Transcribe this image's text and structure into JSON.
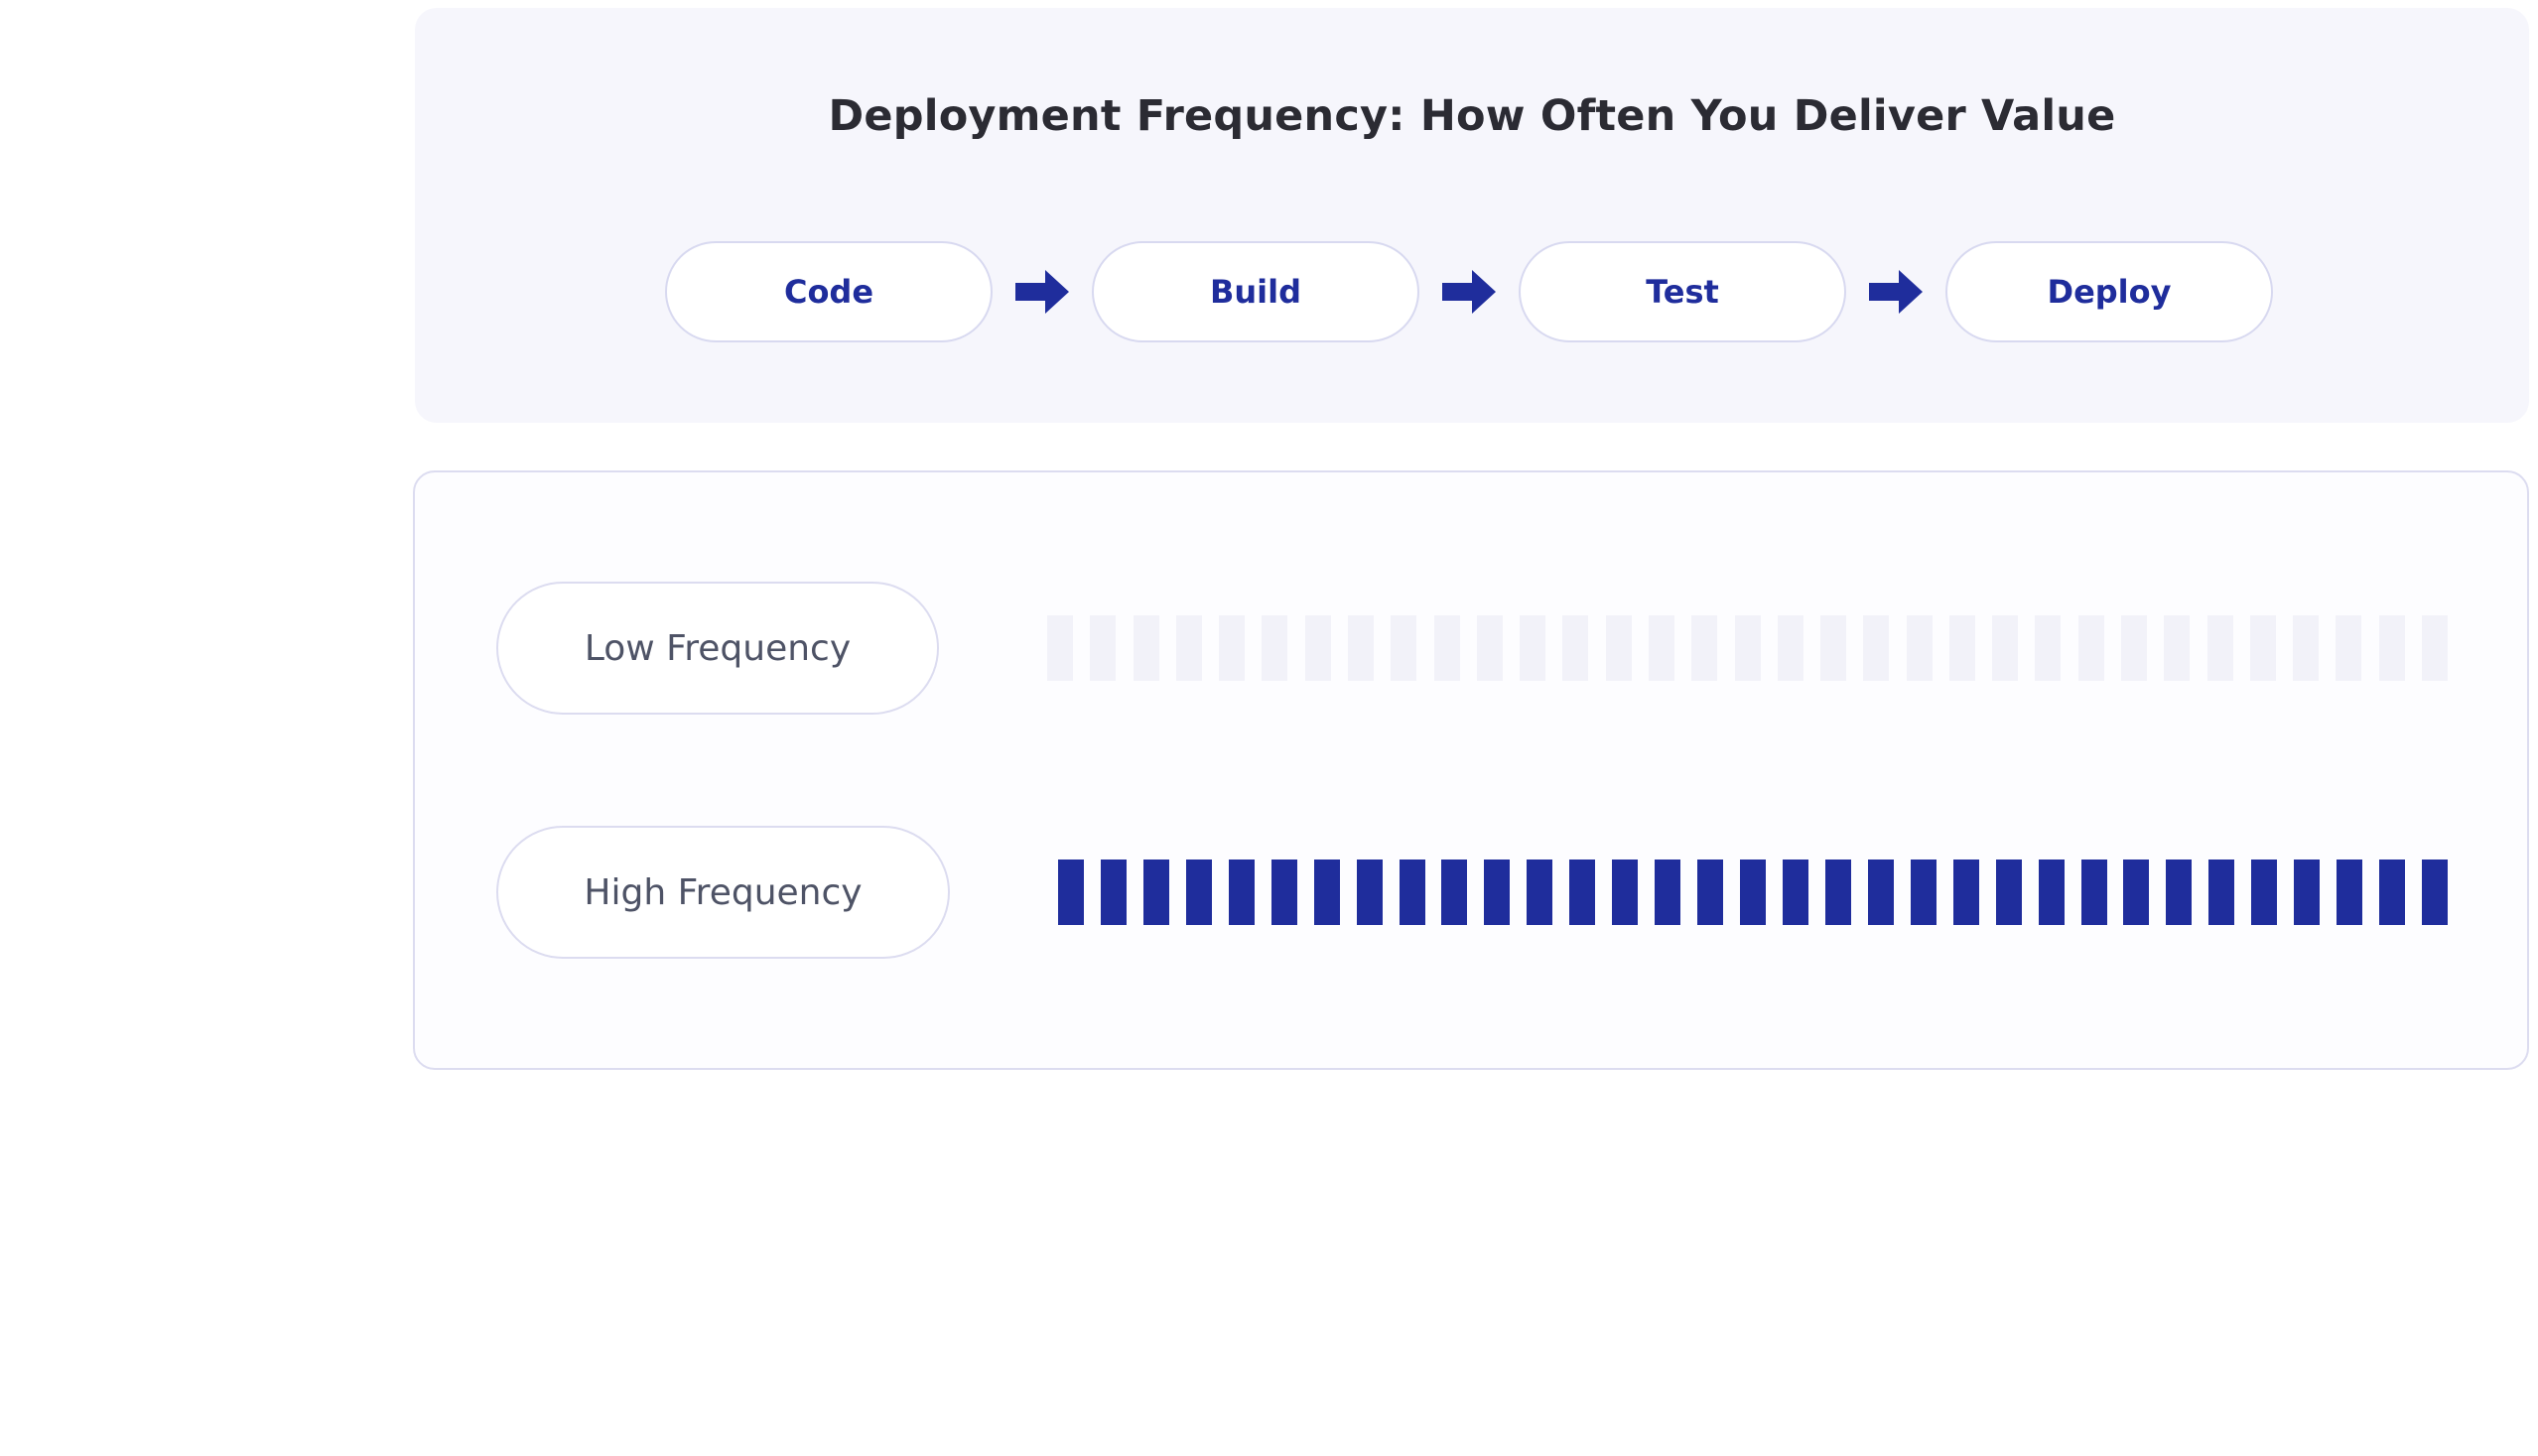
{
  "title": "Deployment Frequency: How Often You Deliver Value",
  "pipeline": {
    "stages": [
      "Code",
      "Build",
      "Test",
      "Deploy"
    ],
    "arrow_icon": "right-arrow-icon",
    "arrow_color": "#1f2d9c"
  },
  "frequency": {
    "low": {
      "label": "Low Frequency",
      "bar_count": 33,
      "bar_color": "#f2f2f9"
    },
    "high": {
      "label": "High Frequency",
      "bar_count": 33,
      "bar_color": "#1f2d9c"
    }
  },
  "colors": {
    "accent": "#1f2d9c",
    "card_bg": "#f6f6fc",
    "title": "#2b2b33",
    "muted_text": "#4e5366"
  }
}
